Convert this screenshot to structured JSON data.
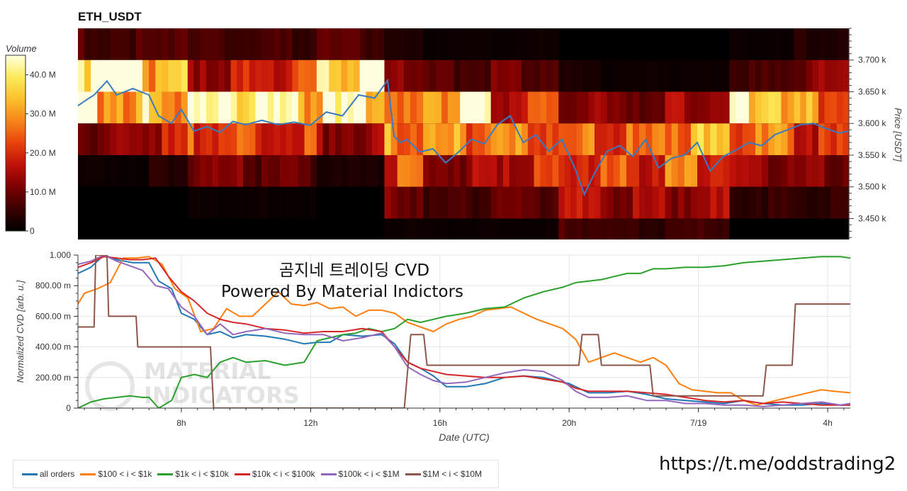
{
  "page_title": "ETH_USDT",
  "overlay_text": {
    "line1": "곰지네 트레이딩 CVD",
    "line2": "Powered By Material Indictors"
  },
  "watermark": {
    "line1": "MATERIAL",
    "line2": "INDICATORS"
  },
  "footer_url": "https://t.me/oddstrading2",
  "colors": {
    "all_orders": "#1f77b4",
    "i100_1k": "#ff7f0e",
    "i1k_10k": "#2ca02c",
    "i10k_100k": "#d62728",
    "i100k_1m": "#9467bd",
    "i1m_10m": "#8c564b"
  },
  "chart_data": [
    {
      "type": "heatmap",
      "title": "ETH_USDT",
      "ylabel": "Price [USDT]",
      "colorbar": {
        "label": "Volume",
        "ticks": [
          0,
          10,
          20,
          30,
          40
        ],
        "tick_labels": [
          "0",
          "10.0 M",
          "20.0 M",
          "30.0 M",
          "40.0 M"
        ],
        "range": [
          0,
          45
        ],
        "colors": [
          "#000000",
          "#3a0000",
          "#7a0000",
          "#c0100a",
          "#e8420b",
          "#f7841a",
          "#fbc02a",
          "#fdeb5a",
          "#ffffe0"
        ]
      },
      "xlim": [
        4.8,
        28.7
      ],
      "ylim": [
        3417,
        3750
      ],
      "y_ticks": [
        3450,
        3500,
        3550,
        3600,
        3650,
        3700
      ],
      "y_tick_labels": [
        "3.450 k",
        "3.500 k",
        "3.550 k",
        "3.600 k",
        "3.650 k",
        "3.700 k"
      ],
      "price_bands": [
        {
          "low": 3700,
          "high": 3750
        },
        {
          "low": 3650,
          "high": 3700
        },
        {
          "low": 3600,
          "high": 3650
        },
        {
          "low": 3550,
          "high": 3600
        },
        {
          "low": 3500,
          "high": 3550
        },
        {
          "low": 3450,
          "high": 3500
        },
        {
          "low": 3417,
          "high": 3450
        }
      ],
      "volume_segments": [
        {
          "x0": 4.8,
          "x1": 7.0,
          "values": [
            6,
            36,
            31,
            9,
            1,
            0,
            0
          ]
        },
        {
          "x0": 7.0,
          "x1": 8.2,
          "values": [
            8,
            27,
            26,
            14,
            3,
            0,
            0
          ]
        },
        {
          "x0": 8.2,
          "x1": 10.3,
          "values": [
            5,
            14,
            33,
            19,
            9,
            1,
            0
          ]
        },
        {
          "x0": 10.3,
          "x1": 12.2,
          "values": [
            5,
            18,
            32,
            17,
            7,
            1,
            0
          ]
        },
        {
          "x0": 12.2,
          "x1": 14.3,
          "values": [
            6,
            39,
            31,
            11,
            2,
            0,
            0
          ]
        },
        {
          "x0": 14.3,
          "x1": 15.5,
          "values": [
            2,
            12,
            18,
            24,
            18,
            9,
            1
          ]
        },
        {
          "x0": 15.5,
          "x1": 17.6,
          "values": [
            1,
            6,
            31,
            22,
            11,
            5,
            1
          ]
        },
        {
          "x0": 17.6,
          "x1": 19.7,
          "values": [
            1,
            8,
            16,
            22,
            15,
            7,
            1
          ]
        },
        {
          "x0": 19.7,
          "x1": 21.0,
          "values": [
            0,
            2,
            10,
            19,
            21,
            12,
            6
          ]
        },
        {
          "x0": 21.0,
          "x1": 23.0,
          "values": [
            0,
            1,
            9,
            18,
            18,
            11,
            4
          ]
        },
        {
          "x0": 23.0,
          "x1": 25.0,
          "values": [
            0,
            1,
            12,
            25,
            20,
            11,
            5
          ]
        },
        {
          "x0": 25.0,
          "x1": 27.0,
          "values": [
            1,
            5,
            33,
            20,
            11,
            4,
            0
          ]
        },
        {
          "x0": 27.0,
          "x1": 28.7,
          "values": [
            3,
            10,
            22,
            15,
            9,
            4,
            0
          ]
        }
      ],
      "price_line": {
        "x": [
          4.8,
          5.0,
          5.3,
          5.7,
          6.0,
          6.5,
          7.0,
          7.3,
          7.7,
          8.0,
          8.4,
          8.8,
          9.2,
          9.6,
          10.0,
          10.5,
          11.0,
          11.5,
          12.0,
          12.5,
          13.0,
          13.5,
          14.0,
          14.4,
          14.6,
          14.8,
          15.0,
          15.4,
          15.8,
          16.2,
          16.6,
          17.0,
          17.4,
          17.8,
          18.2,
          18.6,
          19.0,
          19.4,
          19.8,
          20.2,
          20.5,
          20.8,
          21.2,
          21.6,
          22.0,
          22.4,
          22.8,
          23.2,
          23.6,
          24.0,
          24.4,
          24.8,
          25.2,
          25.6,
          26.0,
          26.4,
          26.8,
          27.2,
          27.6,
          28.0,
          28.4,
          28.7
        ],
        "y": [
          3628,
          3635,
          3645,
          3667,
          3645,
          3655,
          3645,
          3612,
          3600,
          3622,
          3588,
          3595,
          3586,
          3603,
          3598,
          3605,
          3598,
          3602,
          3597,
          3618,
          3612,
          3645,
          3640,
          3668,
          3580,
          3570,
          3575,
          3555,
          3560,
          3538,
          3555,
          3575,
          3568,
          3598,
          3612,
          3570,
          3582,
          3556,
          3575,
          3530,
          3488,
          3520,
          3556,
          3565,
          3548,
          3575,
          3530,
          3545,
          3550,
          3570,
          3525,
          3548,
          3558,
          3570,
          3565,
          3582,
          3590,
          3598,
          3600,
          3592,
          3585,
          3588
        ],
        "color": "#3a7bbf"
      }
    },
    {
      "type": "line",
      "xlabel": "Date (UTC)",
      "ylabel": "Normalized CVD [arb. u.]",
      "xlim": [
        4.8,
        28.7
      ],
      "ylim": [
        0,
        1.0
      ],
      "x_ticks": [
        8,
        12,
        16,
        20,
        24,
        28
      ],
      "x_tick_labels": [
        "8h",
        "12h",
        "16h",
        "20h",
        "7/19",
        "4h"
      ],
      "y_ticks": [
        0,
        0.2,
        0.4,
        0.6,
        0.8,
        1.0
      ],
      "y_tick_labels": [
        "0",
        "200.00 m",
        "400.00 m",
        "600.00 m",
        "800.00 m",
        "1.000"
      ],
      "legend_position": "bottom",
      "series": [
        {
          "name": "all orders",
          "color_key": "all_orders",
          "x": [
            4.8,
            5.2,
            5.6,
            6.0,
            6.5,
            7.0,
            7.3,
            7.7,
            8.0,
            8.4,
            8.8,
            9.2,
            9.6,
            10.0,
            10.6,
            11.2,
            11.8,
            12.2,
            12.6,
            13.0,
            13.6,
            14.2,
            14.6,
            15.0,
            15.4,
            15.8,
            16.2,
            16.8,
            17.4,
            18.0,
            18.6,
            19.2,
            19.6,
            20.0,
            20.6,
            21.2,
            21.8,
            22.4,
            23.0,
            23.6,
            24.2,
            24.8,
            25.4,
            26.0,
            26.6,
            27.2,
            27.8,
            28.4,
            28.7
          ],
          "y": [
            0.88,
            0.92,
            1.0,
            0.97,
            0.95,
            0.95,
            0.83,
            0.78,
            0.62,
            0.58,
            0.48,
            0.5,
            0.46,
            0.48,
            0.47,
            0.45,
            0.42,
            0.43,
            0.43,
            0.48,
            0.47,
            0.48,
            0.42,
            0.3,
            0.26,
            0.21,
            0.14,
            0.14,
            0.16,
            0.2,
            0.21,
            0.2,
            0.18,
            0.16,
            0.1,
            0.1,
            0.11,
            0.09,
            0.06,
            0.05,
            0.04,
            0.03,
            0.05,
            0.03,
            0.02,
            0.02,
            0.03,
            0.02,
            0.02
          ]
        },
        {
          "name": "$100 < i < $1k",
          "color_key": "i100_1k",
          "x": [
            4.8,
            5.0,
            5.4,
            5.8,
            6.2,
            6.6,
            7.0,
            7.4,
            7.8,
            8.2,
            8.6,
            9.0,
            9.4,
            9.8,
            10.2,
            10.6,
            11.0,
            11.4,
            11.8,
            12.2,
            12.6,
            13.0,
            13.4,
            13.8,
            14.2,
            14.6,
            15.0,
            15.4,
            15.8,
            16.2,
            16.6,
            17.0,
            17.4,
            17.8,
            18.2,
            18.6,
            19.0,
            19.4,
            19.8,
            20.2,
            20.6,
            21.0,
            21.4,
            21.8,
            22.2,
            22.6,
            23.0,
            23.4,
            23.8,
            24.2,
            24.6,
            25.0,
            25.4,
            25.8,
            26.2,
            26.6,
            27.0,
            27.4,
            27.8,
            28.2,
            28.7
          ],
          "y": [
            0.68,
            0.75,
            0.78,
            0.82,
            0.98,
            0.98,
            0.99,
            0.94,
            0.78,
            0.72,
            0.5,
            0.52,
            0.65,
            0.6,
            0.6,
            0.68,
            0.76,
            0.68,
            0.67,
            0.69,
            0.65,
            0.66,
            0.6,
            0.64,
            0.64,
            0.62,
            0.56,
            0.53,
            0.5,
            0.55,
            0.58,
            0.6,
            0.64,
            0.65,
            0.66,
            0.62,
            0.58,
            0.55,
            0.52,
            0.45,
            0.3,
            0.33,
            0.36,
            0.33,
            0.3,
            0.33,
            0.28,
            0.16,
            0.12,
            0.11,
            0.1,
            0.1,
            0.05,
            0.02,
            0.04,
            0.06,
            0.08,
            0.1,
            0.12,
            0.11,
            0.1
          ]
        },
        {
          "name": "$1k < i < $10k",
          "color_key": "i1k_10k",
          "x": [
            4.8,
            5.2,
            5.6,
            6.0,
            6.4,
            6.8,
            7.0,
            7.3,
            7.7,
            8.0,
            8.4,
            8.8,
            9.2,
            9.6,
            10.0,
            10.6,
            11.2,
            11.8,
            12.2,
            12.6,
            13.0,
            13.4,
            13.8,
            14.2,
            14.6,
            15.0,
            15.4,
            15.8,
            16.2,
            16.8,
            17.4,
            18.0,
            18.6,
            19.2,
            19.8,
            20.2,
            20.6,
            21.0,
            21.4,
            21.8,
            22.2,
            22.6,
            23.0,
            23.6,
            24.2,
            24.8,
            25.4,
            26.0,
            26.6,
            27.2,
            27.8,
            28.4,
            28.7
          ],
          "y": [
            0.0,
            0.04,
            0.06,
            0.07,
            0.08,
            0.07,
            0.07,
            0.0,
            0.05,
            0.2,
            0.22,
            0.2,
            0.3,
            0.33,
            0.3,
            0.31,
            0.28,
            0.3,
            0.44,
            0.46,
            0.48,
            0.49,
            0.52,
            0.5,
            0.52,
            0.58,
            0.56,
            0.58,
            0.6,
            0.62,
            0.65,
            0.66,
            0.72,
            0.76,
            0.79,
            0.82,
            0.83,
            0.84,
            0.86,
            0.88,
            0.88,
            0.91,
            0.91,
            0.92,
            0.92,
            0.93,
            0.95,
            0.96,
            0.97,
            0.98,
            0.99,
            0.99,
            0.98
          ]
        },
        {
          "name": "$10k < i < $100k",
          "color_key": "i10k_100k",
          "x": [
            4.8,
            5.2,
            5.6,
            6.0,
            6.4,
            6.8,
            7.2,
            7.6,
            8.0,
            8.4,
            8.8,
            9.2,
            9.6,
            10.0,
            10.6,
            11.2,
            11.8,
            12.4,
            13.0,
            13.6,
            14.2,
            14.6,
            15.0,
            15.4,
            15.8,
            16.2,
            16.8,
            17.4,
            18.0,
            18.6,
            19.2,
            19.8,
            20.2,
            20.6,
            21.2,
            21.8,
            22.4,
            23.0,
            23.6,
            24.2,
            24.8,
            25.4,
            26.0,
            26.6,
            27.2,
            27.8,
            28.4,
            28.7
          ],
          "y": [
            0.92,
            0.95,
            0.99,
            0.98,
            0.97,
            0.97,
            0.98,
            0.86,
            0.76,
            0.7,
            0.62,
            0.58,
            0.56,
            0.55,
            0.52,
            0.51,
            0.49,
            0.5,
            0.5,
            0.52,
            0.5,
            0.4,
            0.3,
            0.26,
            0.24,
            0.22,
            0.21,
            0.2,
            0.2,
            0.21,
            0.19,
            0.17,
            0.13,
            0.11,
            0.11,
            0.11,
            0.1,
            0.09,
            0.07,
            0.05,
            0.04,
            0.05,
            0.03,
            0.04,
            0.03,
            0.02,
            0.02,
            0.02
          ]
        },
        {
          "name": "$100k < i < $1M",
          "color_key": "i100k_1m",
          "x": [
            4.8,
            5.2,
            5.6,
            6.0,
            6.4,
            6.8,
            7.2,
            7.6,
            8.0,
            8.4,
            8.8,
            9.2,
            9.6,
            10.0,
            10.6,
            11.2,
            11.8,
            12.4,
            13.0,
            13.6,
            14.2,
            14.6,
            15.0,
            15.4,
            15.8,
            16.2,
            16.8,
            17.4,
            18.0,
            18.6,
            19.2,
            19.8,
            20.2,
            20.6,
            21.2,
            21.8,
            22.4,
            23.0,
            23.6,
            24.2,
            24.8,
            25.4,
            26.0,
            26.6,
            27.2,
            27.8,
            28.4,
            28.7
          ],
          "y": [
            0.94,
            0.96,
            1.0,
            0.96,
            0.93,
            0.9,
            0.8,
            0.78,
            0.66,
            0.6,
            0.48,
            0.55,
            0.48,
            0.5,
            0.52,
            0.49,
            0.48,
            0.48,
            0.44,
            0.46,
            0.49,
            0.4,
            0.27,
            0.22,
            0.18,
            0.16,
            0.17,
            0.2,
            0.23,
            0.25,
            0.24,
            0.18,
            0.11,
            0.07,
            0.07,
            0.08,
            0.05,
            0.05,
            0.03,
            0.03,
            0.02,
            0.02,
            0.01,
            0.02,
            0.03,
            0.04,
            0.02,
            0.03
          ]
        },
        {
          "name": "$1M < i < $10M",
          "color_key": "i1m_10m",
          "x": [
            4.8,
            5.3,
            5.35,
            5.7,
            5.75,
            6.2,
            6.25,
            6.6,
            6.65,
            8.9,
            9.0,
            14.9,
            15.1,
            15.5,
            15.6,
            20.3,
            20.4,
            20.9,
            21.0,
            22.5,
            22.6,
            26.0,
            26.1,
            26.9,
            27.0,
            28.7
          ],
          "y": [
            0.53,
            0.53,
            1.0,
            1.0,
            0.6,
            0.6,
            0.6,
            0.6,
            0.4,
            0.4,
            0.0,
            0.0,
            0.48,
            0.48,
            0.28,
            0.28,
            0.48,
            0.48,
            0.28,
            0.28,
            0.08,
            0.08,
            0.28,
            0.28,
            0.68,
            0.68
          ]
        }
      ]
    }
  ]
}
